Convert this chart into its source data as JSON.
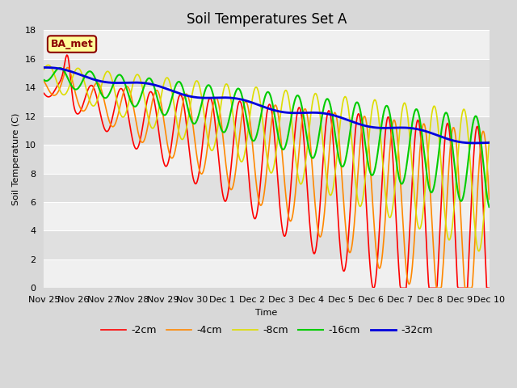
{
  "title": "Soil Temperatures Set A",
  "xlabel": "Time",
  "ylabel": "Soil Temperature (C)",
  "ylim": [
    0,
    18
  ],
  "yticks": [
    0,
    2,
    4,
    6,
    8,
    10,
    12,
    14,
    16,
    18
  ],
  "xtick_labels": [
    "Nov 25",
    "Nov 26",
    "Nov 27",
    "Nov 28",
    "Nov 29",
    "Nov 30",
    "Dec 1",
    "Dec 2",
    "Dec 3",
    "Dec 4",
    "Dec 5",
    "Dec 6",
    "Dec 7",
    "Dec 8",
    "Dec 9",
    "Dec 10"
  ],
  "n_days": 15,
  "pts_per_day": 48,
  "legend_labels": [
    "-2cm",
    "-4cm",
    "-8cm",
    "-16cm",
    "-32cm"
  ],
  "line_colors": [
    "#ff0000",
    "#ff8800",
    "#dddd00",
    "#00cc00",
    "#0000dd"
  ],
  "line_widths": [
    1.2,
    1.2,
    1.2,
    1.5,
    2.0
  ],
  "fig_bg_color": "#d8d8d8",
  "plot_bg_color": "#e8e8e8",
  "band_light": "#f0f0f0",
  "band_dark": "#e0e0e0",
  "annotation_text": "BA_met",
  "annotation_bg": "#ffff99",
  "annotation_border": "#8B0000",
  "title_fontsize": 12,
  "axis_fontsize": 8,
  "legend_fontsize": 9
}
